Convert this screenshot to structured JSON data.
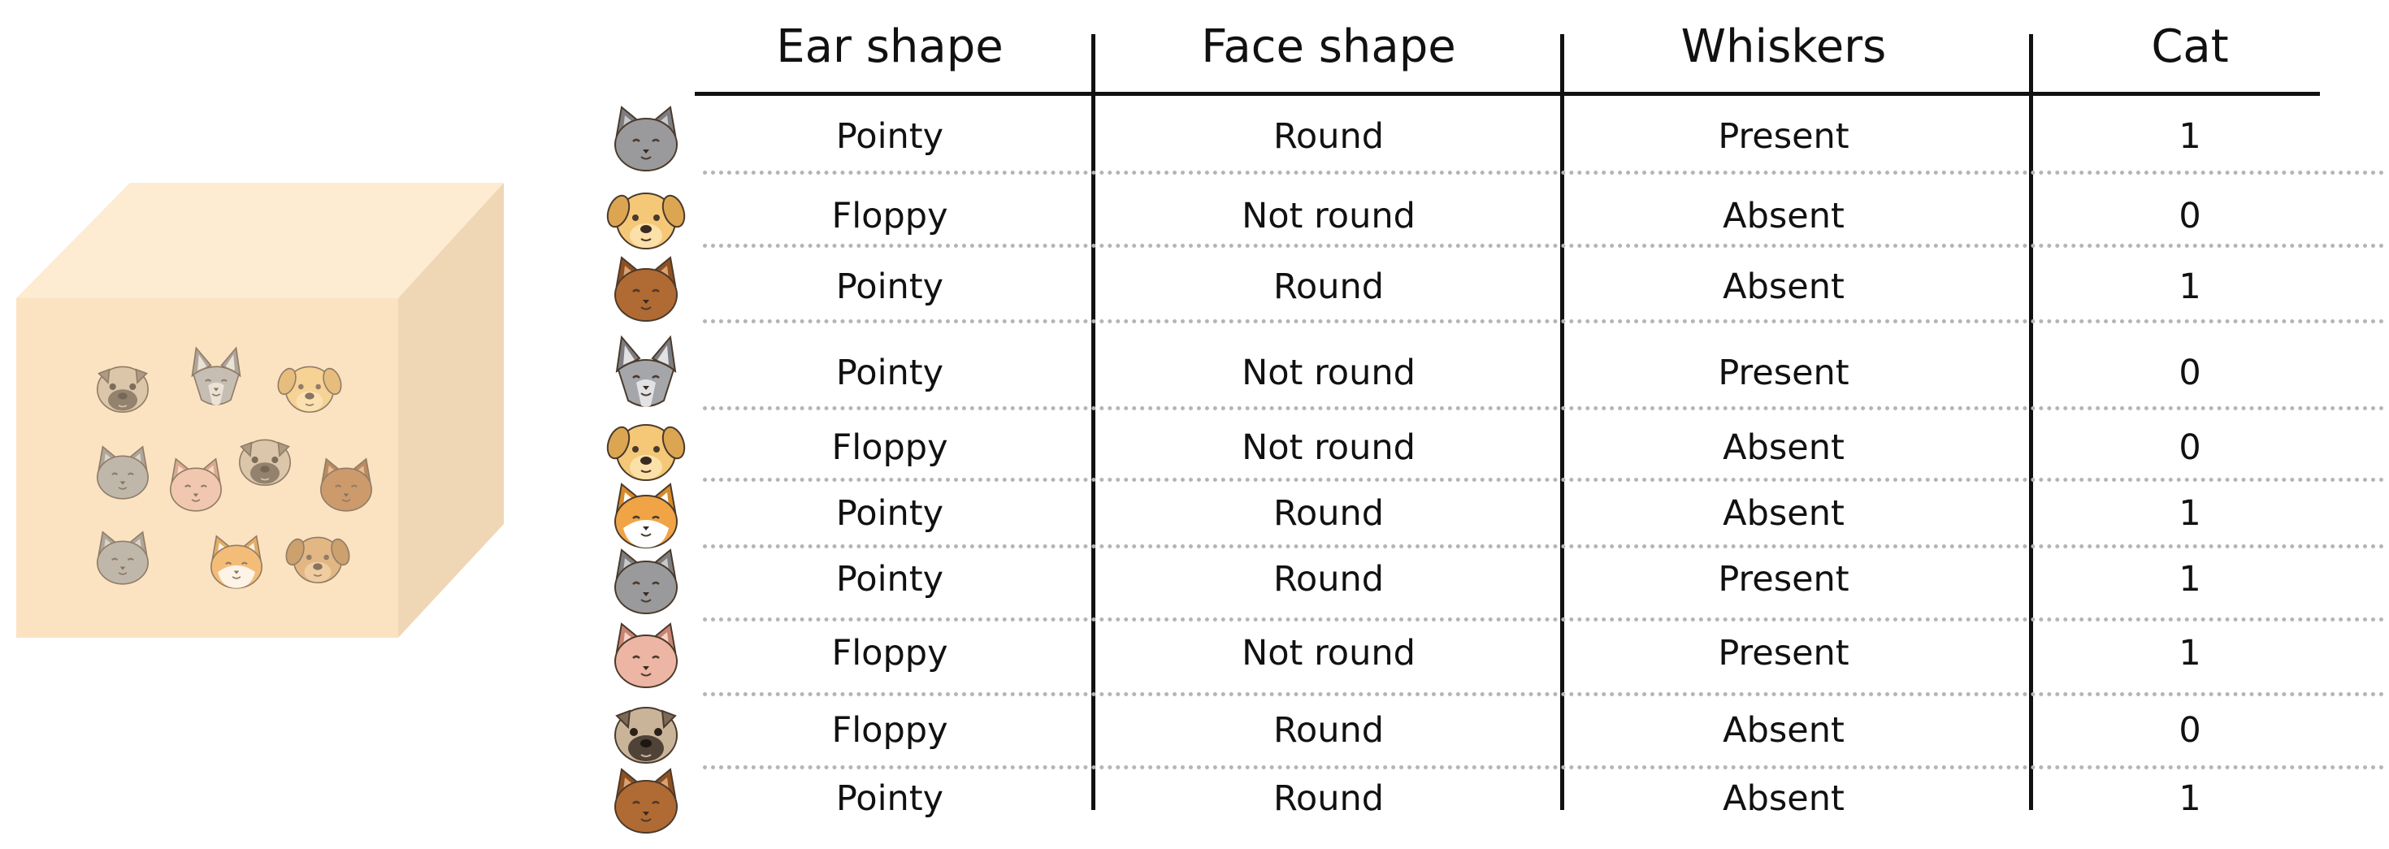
{
  "table": {
    "headers": [
      "Ear shape",
      "Face shape",
      "Whiskers",
      "Cat"
    ],
    "rows": [
      {
        "animal_icon": "gray-cat-icon",
        "cells": [
          "Pointy",
          "Round",
          "Present",
          "1"
        ]
      },
      {
        "animal_icon": "golden-dog-icon",
        "cells": [
          "Floppy",
          "Not round",
          "Absent",
          "0"
        ]
      },
      {
        "animal_icon": "brown-cat-icon",
        "cells": [
          "Pointy",
          "Round",
          "Absent",
          "1"
        ]
      },
      {
        "animal_icon": "gray-wolf-dog-icon",
        "cells": [
          "Pointy",
          "Not round",
          "Present",
          "0"
        ]
      },
      {
        "animal_icon": "golden-dog-icon",
        "cells": [
          "Floppy",
          "Not round",
          "Absent",
          "0"
        ]
      },
      {
        "animal_icon": "orange-white-cat-icon",
        "cells": [
          "Pointy",
          "Round",
          "Absent",
          "1"
        ]
      },
      {
        "animal_icon": "gray-cat-icon",
        "cells": [
          "Pointy",
          "Round",
          "Present",
          "1"
        ]
      },
      {
        "animal_icon": "pink-cat-icon",
        "cells": [
          "Floppy",
          "Not round",
          "Present",
          "1"
        ]
      },
      {
        "animal_icon": "pug-dog-icon",
        "cells": [
          "Floppy",
          "Round",
          "Absent",
          "0"
        ]
      },
      {
        "animal_icon": "brown-cat-icon",
        "cells": [
          "Pointy",
          "Round",
          "Absent",
          "1"
        ]
      }
    ]
  },
  "box": {
    "icon": "dataset-box-icon",
    "animal_icons": [
      "pug-dog-icon",
      "gray-wolf-dog-icon",
      "golden-dog-icon",
      "gray-cat-icon",
      "pink-cat-icon",
      "pug-dog-icon",
      "brown-cat-icon",
      "gray-cat-icon",
      "orange-white-cat-icon",
      "brown-dog-icon"
    ]
  },
  "colors": {
    "box_front": "#fbe3c2",
    "box_top": "#fdebd2",
    "box_side": "#efd6b5",
    "line": "#111111",
    "dotted": "#b5b5b5"
  }
}
